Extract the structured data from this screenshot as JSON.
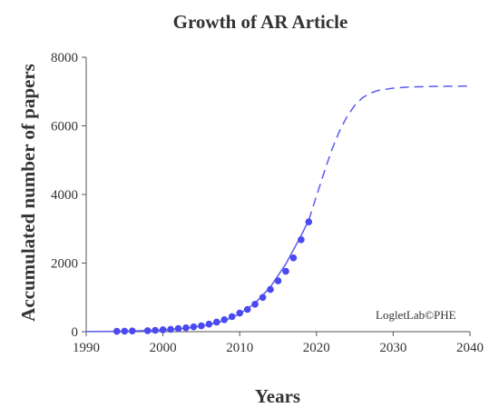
{
  "chart_data": {
    "type": "scatter",
    "title": "Growth of AR Article",
    "xlabel": "Years",
    "ylabel": "Accumulated number of papers",
    "xlim": [
      1990,
      2040
    ],
    "ylim": [
      0,
      8000
    ],
    "x_ticks": [
      1990,
      2000,
      2010,
      2020,
      2030,
      2040
    ],
    "y_ticks": [
      0,
      2000,
      4000,
      6000,
      8000
    ],
    "grid": false,
    "annotation": "LogletLab©PHE",
    "colors": {
      "points": "#4a4af0",
      "fit": "#5a5af2",
      "text": "#333333",
      "axis": "#555555"
    },
    "series": [
      {
        "type": "scatter",
        "x": [
          1994,
          1995,
          1996,
          1998,
          1999,
          2000,
          2001,
          2002,
          2003,
          2004,
          2005,
          2006,
          2007,
          2008,
          2009,
          2010,
          2011,
          2012,
          2013,
          2014,
          2015,
          2016,
          2017,
          2018,
          2019
        ],
        "values": [
          10,
          15,
          20,
          30,
          40,
          55,
          70,
          90,
          115,
          140,
          170,
          220,
          280,
          350,
          440,
          540,
          650,
          800,
          1000,
          1230,
          1480,
          1760,
          2150,
          2680,
          3200
        ]
      },
      {
        "type": "line",
        "style": "solid",
        "x": [
          1990,
          1995,
          2000,
          2003,
          2006,
          2008,
          2010,
          2012,
          2014,
          2016,
          2018,
          2019
        ],
        "values": [
          2,
          12,
          45,
          100,
          200,
          320,
          520,
          830,
          1300,
          1970,
          2800,
          3250
        ]
      },
      {
        "type": "line",
        "style": "dashed",
        "x": [
          2019,
          2020,
          2021,
          2022,
          2023,
          2024,
          2025,
          2026,
          2027,
          2028,
          2030,
          2032,
          2035,
          2040
        ],
        "values": [
          3250,
          3950,
          4650,
          5300,
          5850,
          6280,
          6600,
          6820,
          6950,
          7030,
          7100,
          7130,
          7150,
          7160
        ]
      }
    ]
  }
}
